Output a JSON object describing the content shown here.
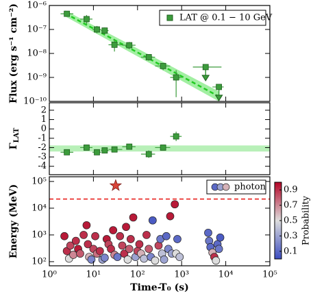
{
  "chart_data": [
    {
      "type": "errorbar",
      "ylabel": "Flux (erg s⁻¹ cm⁻²)",
      "log": true,
      "ylim": [
        1e-10,
        1e-06
      ],
      "yticks": [
        {
          "value": 1e-10,
          "label": "10⁻¹⁰"
        },
        {
          "value": 1e-09,
          "label": "10⁻⁹"
        },
        {
          "value": 1e-08,
          "label": "10⁻⁸"
        },
        {
          "value": 1e-07,
          "label": "10⁻⁷"
        },
        {
          "value": 1e-06,
          "label": "10⁻⁶"
        }
      ],
      "legend": "upper right",
      "series": [
        {
          "name": "LAT @ 0.1 − 10 GeV",
          "color": "#3c9c3c",
          "x": [
            2.5,
            7,
            12,
            18,
            30,
            65,
            180,
            380,
            750,
            3500,
            7000
          ],
          "x_low": [
            1.8,
            5,
            9.5,
            15,
            22,
            45,
            120,
            250,
            550,
            1800,
            5000
          ],
          "x_high": [
            3.5,
            9.5,
            15,
            22,
            45,
            90,
            250,
            550,
            1000,
            8000,
            9000
          ],
          "values": [
            4.5e-07,
            2.7e-07,
            1e-07,
            9e-08,
            2.3e-08,
            2.2e-08,
            7e-09,
            3e-09,
            1e-09,
            2.7e-09,
            4e-10
          ],
          "y_low": [
            3.5e-07,
            1.6e-07,
            7e-08,
            6e-08,
            1.2e-08,
            1.5e-08,
            5e-09,
            2e-09,
            1.5e-10,
            null,
            null
          ],
          "y_high": [
            5.5e-07,
            4e-07,
            1.4e-07,
            1.2e-07,
            4e-08,
            3e-08,
            9e-09,
            4e-09,
            2e-09,
            null,
            null
          ],
          "upper_limit": [
            false,
            false,
            false,
            false,
            false,
            false,
            false,
            false,
            false,
            true,
            true
          ]
        }
      ],
      "fit": {
        "color": "#7be87b",
        "x": [
          2.3,
          7000
        ],
        "values": [
          4.7e-07,
          1.6e-10
        ],
        "low": [
          3.5e-07,
          1e-10
        ],
        "high": [
          6.2e-07,
          2.6e-10
        ]
      }
    },
    {
      "type": "errorbar",
      "ylabel": "Γ",
      "ylabel_sub": "LAT",
      "log": false,
      "ylim": [
        -4.9,
        2.8
      ],
      "yticks": [
        2,
        1,
        0,
        -1,
        -2,
        -3,
        -4
      ],
      "series": [
        {
          "color": "#3c9c3c",
          "x": [
            2.5,
            7,
            12,
            18,
            30,
            65,
            180,
            380,
            750
          ],
          "x_low": [
            1.8,
            5,
            9.5,
            15,
            22,
            45,
            120,
            250,
            550
          ],
          "x_high": [
            3.5,
            9.5,
            15,
            22,
            45,
            90,
            250,
            550,
            1000
          ],
          "values": [
            -2.5,
            -2.0,
            -2.5,
            -2.3,
            -2.2,
            -1.9,
            -2.7,
            -2.0,
            -0.8
          ],
          "y_low": [
            -2.7,
            -2.2,
            -2.8,
            -2.6,
            -2.5,
            -2.1,
            -3.1,
            -2.3,
            -1.3
          ],
          "y_high": [
            -2.3,
            -1.8,
            -2.2,
            -2.0,
            -1.9,
            -1.7,
            -2.3,
            -1.7,
            -0.3
          ]
        }
      ],
      "band": [
        -2.42,
        -1.77
      ],
      "band_color": "#b8f0b8"
    },
    {
      "type": "scatter",
      "ylabel": "Energy (MeV)",
      "xlabel": "Time-T₀ (s)",
      "log": true,
      "xlim": [
        1,
        100000
      ],
      "xticks": [
        {
          "value": 1,
          "label": "10⁰"
        },
        {
          "value": 10,
          "label": "10¹"
        },
        {
          "value": 100,
          "label": "10²"
        },
        {
          "value": 1000,
          "label": "10³"
        },
        {
          "value": 10000,
          "label": "10⁴"
        },
        {
          "value": 100000,
          "label": "10⁵"
        }
      ],
      "ylim": [
        70,
        150000
      ],
      "yticks": [
        {
          "value": 100,
          "label": "10²"
        },
        {
          "value": 1000,
          "label": "10³"
        },
        {
          "value": 10000,
          "label": "10⁴"
        },
        {
          "value": 100000,
          "label": "10⁵"
        }
      ],
      "legend": "upper right",
      "series": [
        {
          "name": "photon",
          "x": [
            2.2,
            2.5,
            2.8,
            3,
            3.5,
            4,
            4.5,
            5,
            6,
            7,
            7.5,
            8,
            9,
            10,
            11,
            12,
            14,
            16,
            18,
            20,
            22,
            25,
            28,
            30,
            35,
            40,
            45,
            50,
            55,
            60,
            65,
            70,
            80,
            90,
            100,
            110,
            120,
            140,
            160,
            180,
            200,
            220,
            250,
            300,
            330,
            360,
            400,
            450,
            500,
            550,
            600,
            700,
            750,
            800,
            900,
            4000,
            4200,
            4500,
            5000,
            5500,
            6000,
            6500,
            7000,
            7500
          ],
          "values": [
            900,
            250,
            130,
            400,
            180,
            600,
            300,
            200,
            1000,
            2300,
            450,
            150,
            120,
            300,
            900,
            200,
            250,
            120,
            140,
            700,
            450,
            300,
            1500,
            180,
            150,
            900,
            400,
            200,
            2000,
            120,
            300,
            700,
            4500,
            150,
            250,
            450,
            200,
            130,
            1000,
            300,
            150,
            3500,
            110,
            400,
            700,
            200,
            120,
            900,
            300,
            5000,
            200,
            14000,
            200,
            700,
            150,
            1200,
            600,
            350,
            220,
            150,
            110,
            450,
            300,
            800
          ],
          "probability": [
            0.95,
            0.9,
            0.5,
            0.85,
            0.7,
            0.9,
            0.95,
            0.8,
            0.9,
            0.95,
            0.9,
            0.6,
            0.2,
            0.85,
            0.9,
            0.75,
            0.9,
            0.3,
            0.2,
            0.95,
            0.85,
            0.9,
            0.95,
            0.7,
            0.15,
            0.9,
            0.85,
            0.9,
            0.95,
            0.5,
            0.8,
            0.9,
            0.95,
            0.3,
            0.85,
            0.9,
            0.6,
            0.4,
            0.9,
            0.8,
            0.2,
            0.05,
            0.5,
            0.85,
            0.15,
            0.4,
            0.3,
            0.1,
            0.2,
            0.95,
            0.3,
            0.95,
            0.5,
            0.1,
            0.4,
            0.1,
            0.15,
            0.1,
            0.6,
            0.9,
            0.5,
            0.1,
            0.15,
            0.05
          ]
        }
      ],
      "star": {
        "x": 32,
        "value": 70000,
        "color": "#d9453a"
      },
      "hline": {
        "value": 22000,
        "color": "#e8201c"
      },
      "colorbar": {
        "label": "Probability",
        "clim": [
          0,
          1
        ],
        "ticks": [
          0.1,
          0.3,
          0.5,
          0.7,
          0.9
        ],
        "colormap": [
          "#3b4cc0",
          "#dddddd",
          "#b40426"
        ]
      }
    }
  ]
}
